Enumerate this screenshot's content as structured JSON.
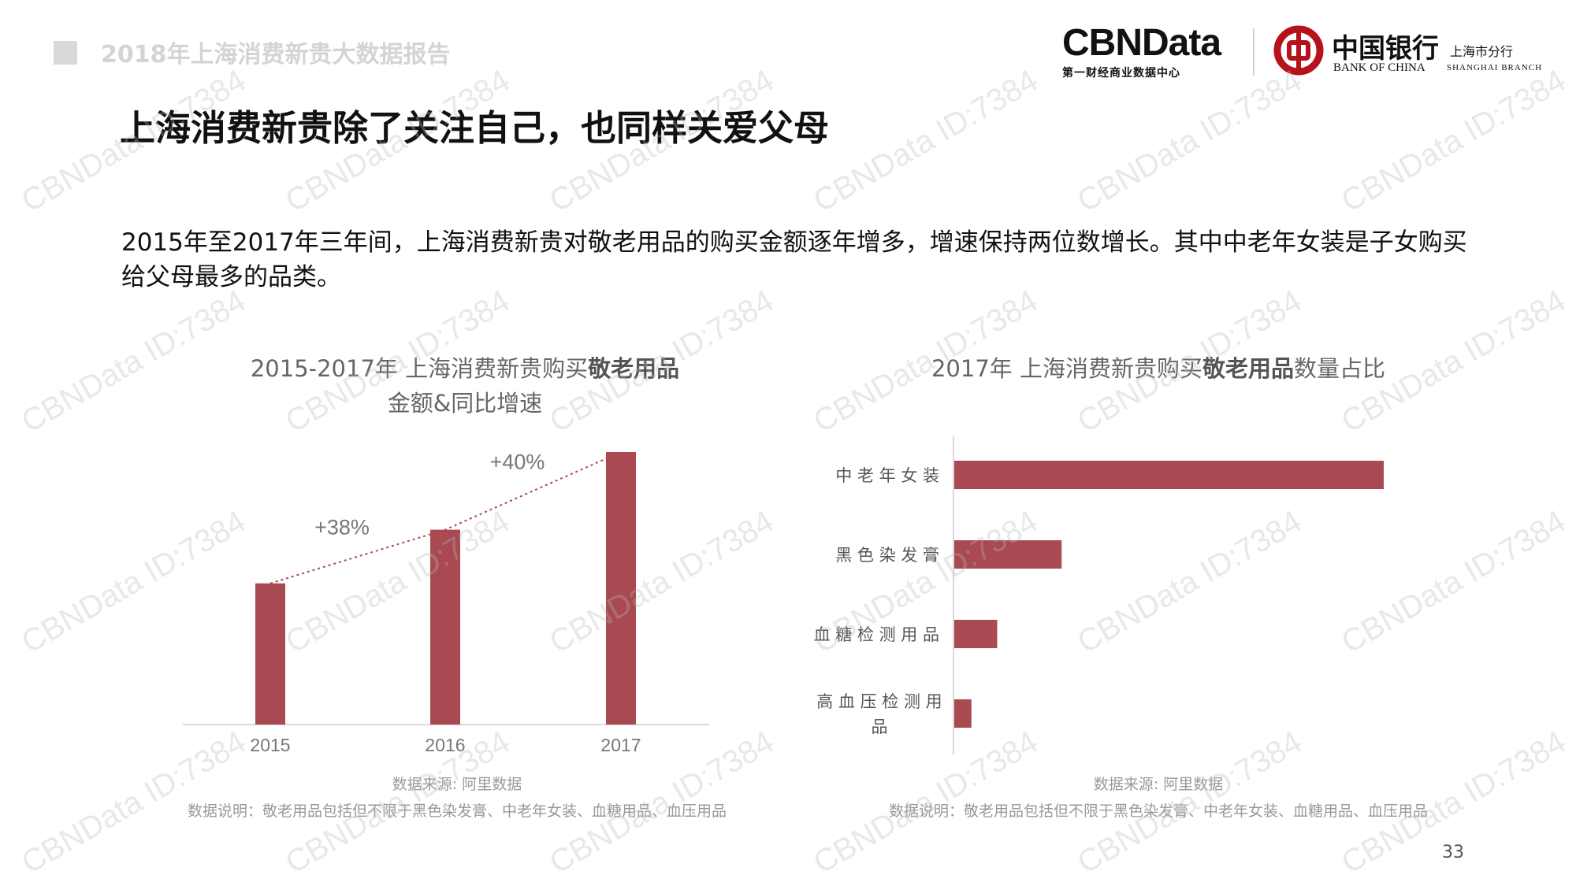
{
  "header": {
    "report_title": "2018年上海消费新贵大数据报告",
    "main_title": "上海消费新贵除了关注自己，也同样关爱父母",
    "summary": "2015年至2017年三年间，上海消费新贵对敬老用品的购买金额逐年增多，增速保持两位数增长。其中中老年女装是子女购买给父母最多的品类。"
  },
  "logos": {
    "cbndata_word": "CBNData",
    "cbndata_sub": "第一财经商业数据中心",
    "boc_cn": "中国银行",
    "boc_en": "BANK OF CHINA",
    "boc_branch_cn": "上海市分行",
    "boc_branch_en": "SHANGHAI BRANCH"
  },
  "watermark_text": "CBNData ID:7384",
  "page_number": "33",
  "colors": {
    "bar": "#a94a52",
    "trend": "#a94a52",
    "axis": "#d9d9d9"
  },
  "chart_data": [
    {
      "type": "bar",
      "title_prefix": "2015-2017年 上海消费新贵购买",
      "title_bold": "敬老用品",
      "title_line2": "金额&同比增速",
      "categories": [
        "2015",
        "2016",
        "2017"
      ],
      "values": [
        1.0,
        1.38,
        1.93
      ],
      "annotations": [
        "+38%",
        "+40%"
      ],
      "trend_line": true,
      "source": "数据来源: 阿里数据",
      "note": "数据说明：敬老用品包括但不限于黑色染发膏、中老年女装、血糖用品、血压用品"
    },
    {
      "type": "bar",
      "orientation": "horizontal",
      "title_prefix": "2017年 上海消费新贵购买",
      "title_bold": "敬老用品",
      "title_suffix": "数量占比",
      "categories": [
        "中 老 年 女 装",
        "黑 色 染 发 膏",
        "血 糖 检 测 用 品",
        "高 血 压 检 测 用 品"
      ],
      "values": [
        100,
        25,
        10,
        4
      ],
      "source": "数据来源: 阿里数据",
      "note": "数据说明：敬老用品包括但不限于黑色染发膏、中老年女装、血糖用品、血压用品"
    }
  ]
}
